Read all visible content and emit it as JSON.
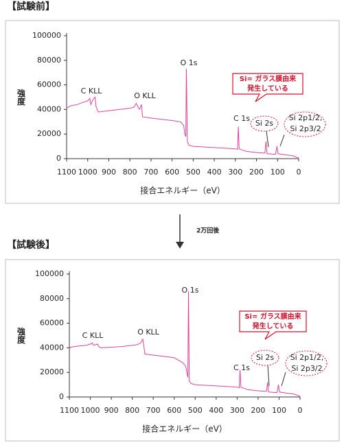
{
  "arrow_label": "2万回後",
  "chart_data": [
    {
      "type": "line",
      "title": "【試験前】",
      "xlabel": "接合エネルギー（eV）",
      "ylabel": "強度",
      "color": "#e0409a",
      "xlim": [
        1100,
        0
      ],
      "xticks": [
        1100,
        1000,
        900,
        800,
        700,
        600,
        500,
        400,
        300,
        200,
        100,
        0
      ],
      "ylim": [
        0,
        100000
      ],
      "yticks": [
        0,
        20000,
        40000,
        60000,
        80000,
        100000
      ],
      "x": [
        1100,
        1080,
        1050,
        1020,
        1000,
        990,
        985,
        975,
        965,
        960,
        950,
        900,
        850,
        800,
        780,
        770,
        762,
        755,
        745,
        740,
        700,
        650,
        600,
        560,
        545,
        540,
        535,
        532,
        528,
        520,
        500,
        450,
        400,
        350,
        300,
        290,
        286,
        282,
        250,
        200,
        160,
        155,
        150,
        110,
        103,
        98,
        60,
        30,
        0
      ],
      "values": [
        41000,
        43000,
        44000,
        46000,
        47000,
        49000,
        44000,
        48000,
        50000,
        42000,
        38000,
        39000,
        40000,
        41000,
        42000,
        45000,
        42000,
        40000,
        44000,
        34000,
        33000,
        32000,
        31000,
        30000,
        27000,
        20000,
        18000,
        73000,
        14000,
        11000,
        10000,
        9500,
        9000,
        8500,
        8000,
        7500,
        26000,
        8000,
        6000,
        5000,
        4500,
        14000,
        4000,
        3500,
        10000,
        4000,
        3000,
        2500,
        500
      ],
      "annotations": [
        "C KLL",
        "O KLL",
        "O 1s",
        "C 1s",
        "Si 2s"
      ],
      "si2p": [
        "Si 2p1/2,",
        "Si 2p3/2"
      ],
      "callout": [
        "Si= ガラス膜由来",
        "発生している"
      ]
    },
    {
      "type": "line",
      "title": "【試験後】",
      "xlabel": "接合エネルギー（eV）",
      "ylabel": "強度",
      "color": "#e0409a",
      "xlim": [
        1100,
        0
      ],
      "xticks": [
        1100,
        1000,
        900,
        800,
        700,
        600,
        500,
        400,
        300,
        200,
        100,
        0
      ],
      "ylim": [
        0,
        100000
      ],
      "yticks": [
        0,
        20000,
        40000,
        60000,
        80000,
        100000
      ],
      "x": [
        1100,
        1080,
        1050,
        1020,
        1000,
        990,
        985,
        975,
        965,
        960,
        950,
        900,
        850,
        800,
        780,
        770,
        760,
        750,
        745,
        740,
        700,
        650,
        600,
        560,
        545,
        540,
        535,
        532,
        528,
        520,
        500,
        450,
        400,
        350,
        300,
        290,
        286,
        282,
        250,
        200,
        160,
        155,
        150,
        110,
        103,
        98,
        60,
        30,
        0
      ],
      "values": [
        40000,
        41000,
        41500,
        42000,
        43000,
        44000,
        42000,
        42500,
        43000,
        41000,
        40000,
        40500,
        41000,
        42000,
        42500,
        43000,
        44000,
        47000,
        42000,
        35000,
        34000,
        33000,
        32000,
        28000,
        25000,
        20000,
        16000,
        86000,
        13000,
        11000,
        10000,
        9500,
        9000,
        8500,
        8000,
        7500,
        22000,
        8000,
        6000,
        5000,
        4500,
        12000,
        4000,
        3500,
        10000,
        4000,
        3000,
        2500,
        500
      ],
      "annotations": [
        "C KLL",
        "O KLL",
        "O 1s",
        "C 1s",
        "Si 2s"
      ],
      "si2p": [
        "Si 2p1/2,",
        "Si 2p3/2"
      ],
      "callout": [
        "Si= ガラス膜由来",
        "発生している"
      ]
    }
  ]
}
